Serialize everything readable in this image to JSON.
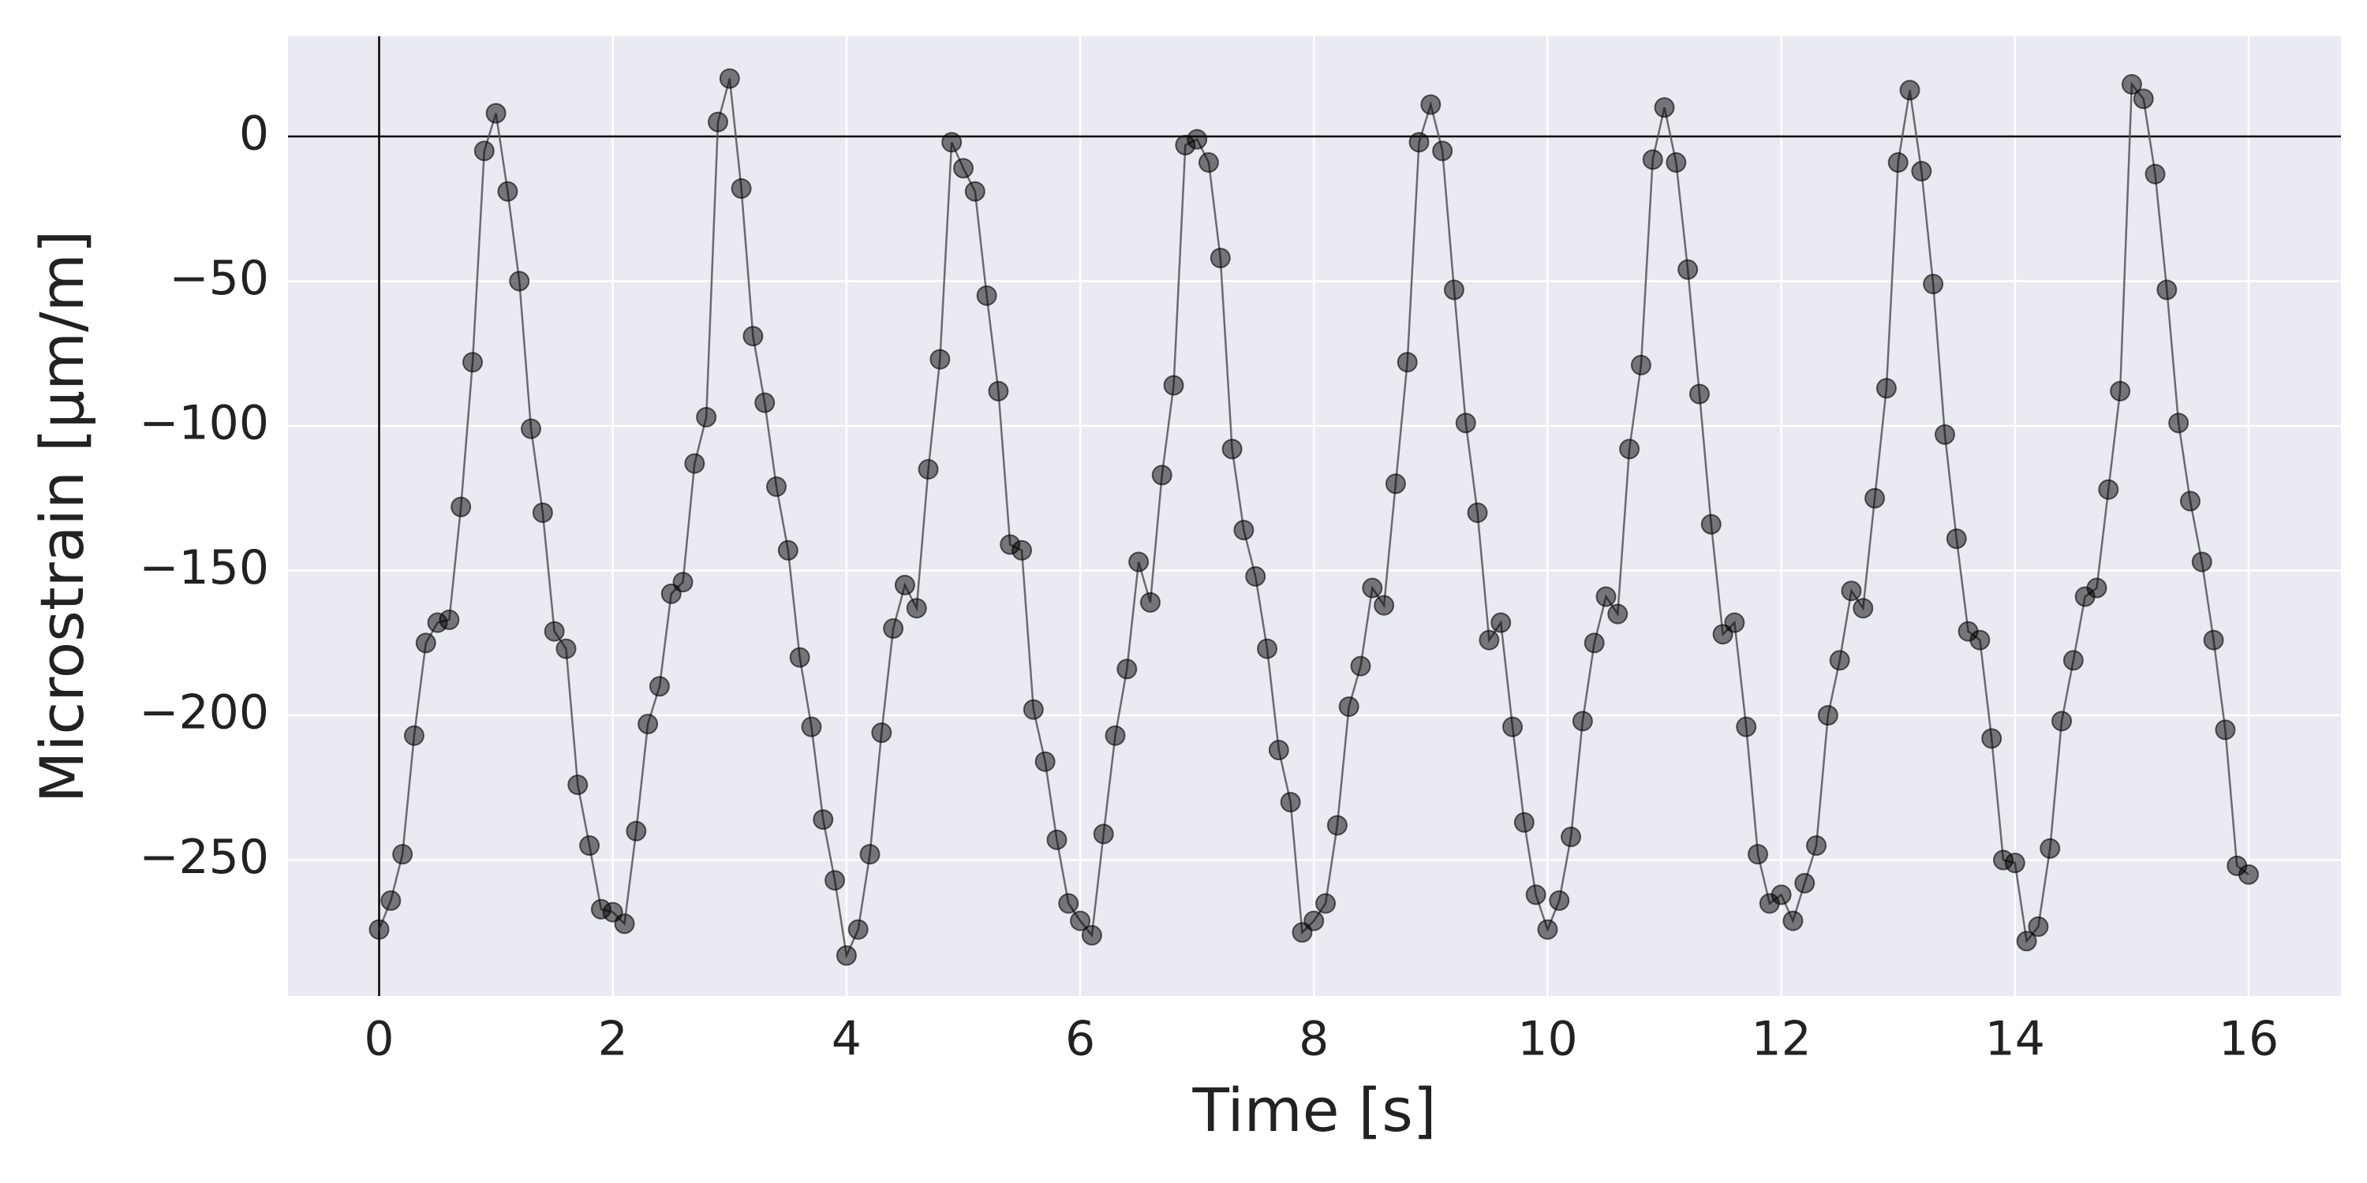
{
  "chart_data": {
    "type": "line",
    "xlabel": "Time [s]",
    "ylabel": "Microstrain [µm/m]",
    "x": [
      0,
      0.1,
      0.2,
      0.3,
      0.4,
      0.5,
      0.6,
      0.7,
      0.8,
      0.9,
      1,
      1.1,
      1.2,
      1.3,
      1.4,
      1.5,
      1.6,
      1.7,
      1.8,
      1.9,
      2,
      2.1,
      2.2,
      2.3,
      2.4,
      2.5,
      2.6,
      2.7,
      2.8,
      2.9,
      3,
      3.1,
      3.2,
      3.3,
      3.4,
      3.5,
      3.6,
      3.7,
      3.8,
      3.9,
      4,
      4.1,
      4.2,
      4.3,
      4.4,
      4.5,
      4.6,
      4.7,
      4.8,
      4.9,
      5,
      5.1,
      5.2,
      5.3,
      5.4,
      5.5,
      5.6,
      5.7,
      5.8,
      5.9,
      6,
      6.1,
      6.2,
      6.3,
      6.4,
      6.5,
      6.6,
      6.7,
      6.8,
      6.9,
      7,
      7.1,
      7.2,
      7.3,
      7.4,
      7.5,
      7.6,
      7.7,
      7.8,
      7.9,
      8,
      8.1,
      8.2,
      8.3,
      8.4,
      8.5,
      8.6,
      8.7,
      8.8,
      8.9,
      9,
      9.1,
      9.2,
      9.3,
      9.4,
      9.5,
      9.6,
      9.7,
      9.8,
      9.9,
      10,
      10.1,
      10.2,
      10.3,
      10.4,
      10.5,
      10.6,
      10.7,
      10.8,
      10.9,
      11,
      11.1,
      11.2,
      11.3,
      11.4,
      11.5,
      11.6,
      11.7,
      11.8,
      11.9,
      12,
      12.1,
      12.2,
      12.3,
      12.4,
      12.5,
      12.6,
      12.7,
      12.8,
      12.9,
      13,
      13.1,
      13.2,
      13.3,
      13.4,
      13.5,
      13.6,
      13.7,
      13.8,
      13.9,
      14,
      14.1,
      14.2,
      14.3,
      14.4,
      14.5,
      14.6,
      14.7,
      14.8,
      14.9,
      15,
      15.1,
      15.2,
      15.3,
      15.4,
      15.5,
      15.6,
      15.7,
      15.8,
      15.9,
      16
    ],
    "series": [
      {
        "color": "#555555",
        "values": [
          -274,
          -264,
          -248,
          -207,
          -175,
          -168,
          -167,
          -128,
          -78,
          -5,
          8,
          -19,
          -50,
          -101,
          -130,
          -171,
          -177,
          -224,
          -245,
          -267,
          -268,
          -272,
          -240,
          -203,
          -190,
          -158,
          -154,
          -113,
          -97,
          5,
          20,
          -18,
          -69,
          -92,
          -121,
          -143,
          -180,
          -204,
          -236,
          -257,
          -283,
          -274,
          -248,
          -206,
          -170,
          -155,
          -163,
          -115,
          -77,
          -2,
          -11,
          -19,
          -55,
          -88,
          -141,
          -143,
          -198,
          -216,
          -243,
          -265,
          -271,
          -276,
          -241,
          -207,
          -184,
          -147,
          -161,
          -117,
          -86,
          -3,
          -1,
          -9,
          -42,
          -108,
          -136,
          -152,
          -177,
          -212,
          -230,
          -275,
          -271,
          -265,
          -238,
          -197,
          -183,
          -156,
          -162,
          -120,
          -78,
          -2,
          11,
          -5,
          -53,
          -99,
          -130,
          -174,
          -168,
          -204,
          -237,
          -262,
          -274,
          -264,
          -242,
          -202,
          -175,
          -159,
          -165,
          -108,
          -79,
          -8,
          10,
          -9,
          -46,
          -89,
          -134,
          -172,
          -168,
          -204,
          -248,
          -265,
          -262,
          -271,
          -258,
          -245,
          -200,
          -181,
          -157,
          -163,
          -125,
          -87,
          -9,
          16,
          -12,
          -51,
          -103,
          -139,
          -171,
          -174,
          -208,
          -250,
          -251,
          -278,
          -273,
          -246,
          -202,
          -181,
          -159,
          -156,
          -122,
          -88,
          18,
          13,
          -13,
          -53,
          -99,
          -126,
          -147,
          -174,
          -205,
          -252,
          -255
        ]
      }
    ],
    "xlim": [
      -0.78,
      16.79
    ],
    "ylim": [
      -297,
      34.6
    ],
    "xticks": [
      0,
      2,
      4,
      6,
      8,
      10,
      12,
      14,
      16
    ],
    "yticks": [
      0,
      {
        "value": -50,
        "label": "−50"
      },
      {
        "value": -100,
        "label": "−100"
      },
      {
        "value": -150,
        "label": "−150"
      },
      {
        "value": -200,
        "label": "−200"
      },
      {
        "value": -250,
        "label": "−250"
      }
    ],
    "reference_lines": {
      "x": 0,
      "y": 0
    },
    "grid": true,
    "background": "#eaeaf2"
  }
}
